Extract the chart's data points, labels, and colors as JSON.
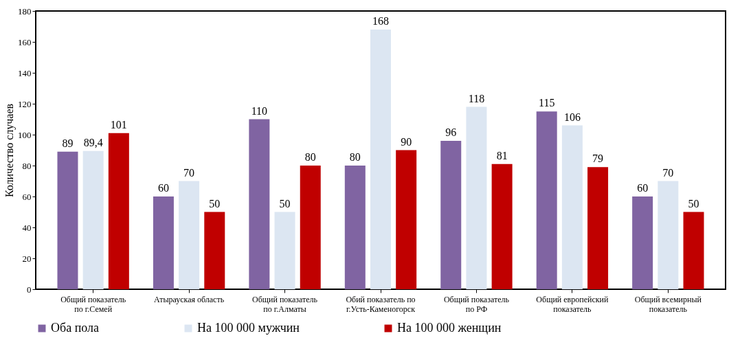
{
  "chart_data": {
    "type": "bar",
    "ylabel": "Количество случаев",
    "categories": [
      "Общий показатель по г.Семей",
      "Атырауская область",
      "Общий показатель по г.Алматы",
      "Обий показатель по г.Усть-Каменогорск",
      "Общий показатель по РФ",
      "Общий европейский показатель",
      "Общий всемирный показатель"
    ],
    "series": [
      {
        "name": "Оба пола",
        "color": "#8064a2",
        "values": [
          89,
          60,
          110,
          80,
          96,
          115,
          60
        ],
        "value_labels": [
          "89",
          "60",
          "110",
          "80",
          "96",
          "115",
          "60"
        ]
      },
      {
        "name": "На 100 000 мужчин",
        "color": "#dce6f2",
        "values": [
          89.4,
          70,
          50,
          168,
          118,
          106,
          70
        ],
        "value_labels": [
          "89,4",
          "70",
          "50",
          "168",
          "118",
          "106",
          "70"
        ]
      },
      {
        "name": "На 100 000 женщин",
        "color": "#c00000",
        "values": [
          101,
          50,
          80,
          90,
          81,
          79,
          50
        ],
        "value_labels": [
          "101",
          "50",
          "80",
          "90",
          "81",
          "79",
          "50"
        ]
      }
    ],
    "ylim": [
      0,
      180
    ],
    "yticks": [
      0,
      20,
      40,
      60,
      80,
      100,
      120,
      140,
      160,
      180
    ],
    "grid": false,
    "legend": "bottom"
  }
}
